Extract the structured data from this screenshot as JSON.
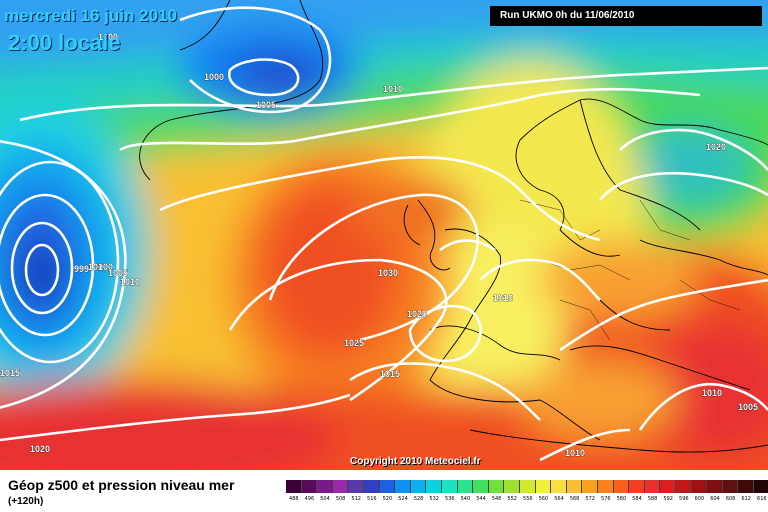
{
  "map": {
    "date_text": "mercredi 16 juin 2010",
    "time_text": "2:00 locale",
    "run_text": "Run UKMO 0h du 11/06/2010",
    "copyright": "Copyright 2010 Meteociel.fr",
    "isobar_labels": [
      "1000",
      "1005",
      "1005",
      "1010",
      "1020",
      "999",
      "100",
      "100",
      "1005",
      "1010",
      "1030",
      "1010",
      "1020",
      "1025",
      "1015",
      "1015",
      "1010",
      "1005",
      "1010",
      "1020"
    ]
  },
  "footer": {
    "title": "Géop z500 et pression niveau mer",
    "subtitle": "(+120h)"
  },
  "legend": {
    "values": [
      "488",
      "496",
      "504",
      "508",
      "512",
      "516",
      "520",
      "524",
      "528",
      "532",
      "536",
      "540",
      "544",
      "548",
      "552",
      "556",
      "560",
      "564",
      "568",
      "572",
      "576",
      "580",
      "584",
      "588",
      "592",
      "596",
      "600",
      "604",
      "608",
      "612",
      "616"
    ],
    "colors": [
      "#3a003a",
      "#5a0a5a",
      "#7a1a8a",
      "#9a2aaa",
      "#5a3aaa",
      "#3040c0",
      "#2060e0",
      "#1090f0",
      "#10b0f0",
      "#10d0e0",
      "#20e0c0",
      "#30e090",
      "#40e060",
      "#70e040",
      "#a0e030",
      "#d0e830",
      "#f0f040",
      "#f8e040",
      "#f8c030",
      "#f8a020",
      "#f88020",
      "#f86020",
      "#f04020",
      "#e83030",
      "#d82020",
      "#c01818",
      "#a01010",
      "#801010",
      "#601010",
      "#400a0a",
      "#200505"
    ],
    "colors_note": ""
  }
}
